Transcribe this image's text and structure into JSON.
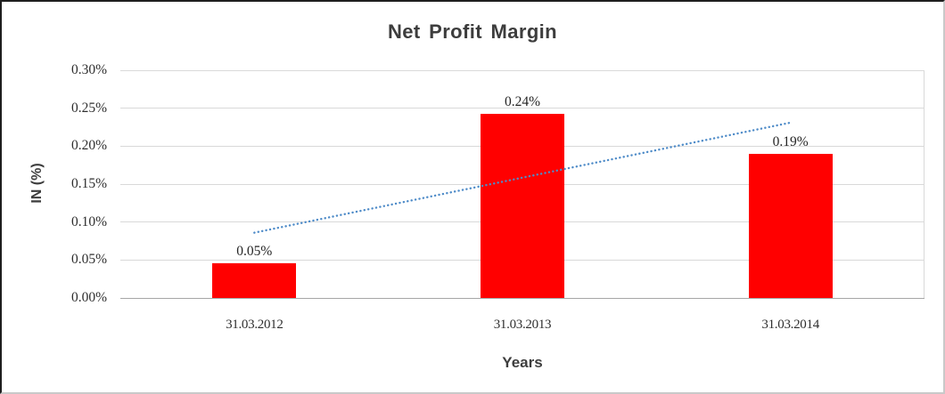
{
  "chart_data": {
    "type": "bar",
    "title": "Net Profit Margin",
    "ylabel": "IN (%)",
    "xlabel": "Years",
    "categories": [
      "31.03.2012",
      "31.03.2013",
      "31.03.2014"
    ],
    "series": [
      {
        "name": "Net Profit Margin",
        "values": [
          0.046,
          0.243,
          0.19
        ]
      }
    ],
    "data_labels": [
      "0.05%",
      "0.24%",
      "0.19%"
    ],
    "value_unit": "percent",
    "ylim": [
      0,
      0.3
    ],
    "ytick_step": 0.05,
    "ytick_labels": [
      "0.00%",
      "0.05%",
      "0.10%",
      "0.15%",
      "0.20%",
      "0.25%",
      "0.30%"
    ],
    "grid": true,
    "legend": false,
    "trendline": {
      "type": "linear",
      "style": "dotted",
      "start_value": 0.086,
      "end_value": 0.231
    }
  },
  "colors": {
    "bar": "#ff0000",
    "trendline": "#4e8bc8",
    "gridline": "#d9d9d9",
    "axis_line": "#a6a6a6",
    "title_text": "#3d3d3d",
    "tick_text": "#2e2e2e"
  }
}
